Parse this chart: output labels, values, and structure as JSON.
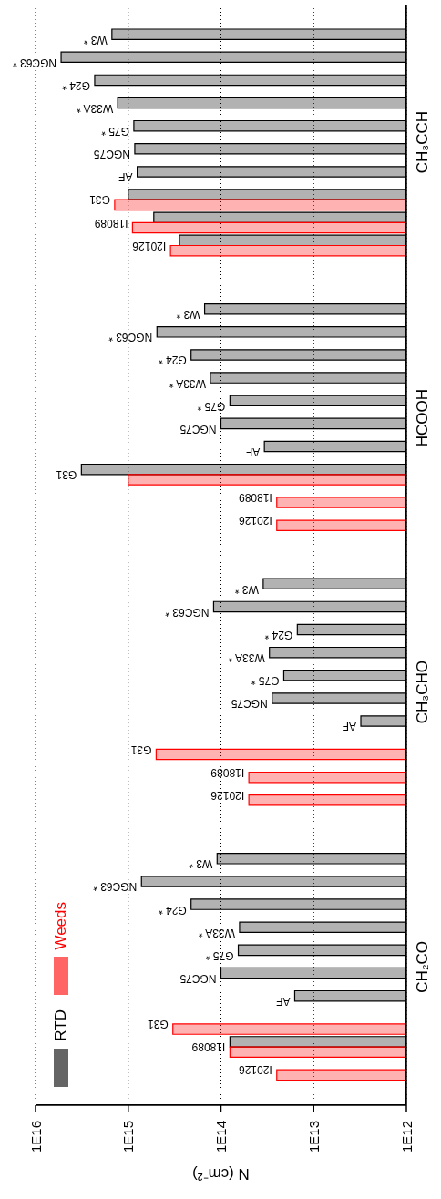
{
  "chart_data": {
    "type": "bar",
    "orientation": "horizontal",
    "xlabel": "N (cm⁻²)",
    "log": "x",
    "grid": "x",
    "legend": "bottom left",
    "categories": [
      "W3 *",
      "NGC63 *",
      "G24 *",
      "W33A *",
      "G75 *",
      "NGC75",
      "AF",
      "G31",
      "I18089",
      "I20126",
      null,
      null,
      "W3 *",
      "NGC63 *",
      "G24 *",
      "W33A *",
      "G75 *",
      "NGC75",
      "AF",
      "G31",
      "I18089",
      "I20126",
      null,
      null,
      "W3 *",
      "NGC63 *",
      "G24 *",
      "W33A *",
      "G75 *",
      "NGC75",
      "AF",
      "G31",
      "I18089",
      "I20126",
      null,
      null,
      "W3 *",
      "NGC63 *",
      "G24 *",
      "W33A *",
      "G75 *",
      "NGC75",
      "AF",
      "G31",
      "I18089",
      "I20126"
    ],
    "series": [
      {
        "name": "RTD",
        "color": "#000000",
        "values": [
          1500000000000000.0,
          5300000000000000.0,
          2300000000000000.0,
          1300000000000000.0,
          870000000000000.0,
          850000000000000.0,
          800000000000000.0,
          1000000000000000.0,
          530000000000000.0,
          280000000000000.0,
          null,
          null,
          150000000000000.0,
          490000000000000.0,
          210000000000000.0,
          130000000000000.0,
          80000000000000.0,
          100000000000000.0,
          34000000000000.0,
          3200000000000000.0,
          null,
          null,
          null,
          null,
          35000000000000.0,
          120000000000000.0,
          15000000000000.0,
          30000000000000.0,
          21000000000000.0,
          28000000000000.0,
          3100000000000.0,
          null,
          null,
          null,
          null,
          null,
          110000000000000.0,
          720000000000000.0,
          210000000000000.0,
          63000000000000.0,
          65000000000000.0,
          100000000000000.0,
          16000000000000.0,
          null,
          80000000000000.0,
          null
        ]
      },
      {
        "name": "Weeds",
        "color": "#ff0000",
        "values": [
          null,
          null,
          null,
          null,
          null,
          null,
          null,
          1400000000000000.0,
          900000000000000.0,
          350000000000000.0,
          null,
          null,
          null,
          null,
          null,
          null,
          null,
          null,
          null,
          1000000000000000.0,
          25000000000000.0,
          25000000000000.0,
          null,
          null,
          null,
          null,
          null,
          null,
          null,
          null,
          null,
          500000000000000.0,
          50000000000000.0,
          50000000000000.0,
          null,
          null,
          null,
          null,
          null,
          null,
          null,
          null,
          null,
          330000000000000.0,
          80000000000000.0,
          25000000000000.0
        ]
      }
    ],
    "xlim": [
      1e+16,
      1000000000000.0
    ],
    "xticks": [
      {
        "value": 1e+16,
        "label": "1E16"
      },
      {
        "value": 1000000000000000.0,
        "label": "1E15"
      },
      {
        "value": 100000000000000.0,
        "label": "1E14"
      },
      {
        "value": 10000000000000.0,
        "label": "1E13"
      },
      {
        "value": 1000000000000.0,
        "label": "1E12"
      }
    ],
    "annotations": [
      "CH₃CCH",
      "HCOOH",
      "CH₃CHO",
      "CH₂CO"
    ]
  }
}
